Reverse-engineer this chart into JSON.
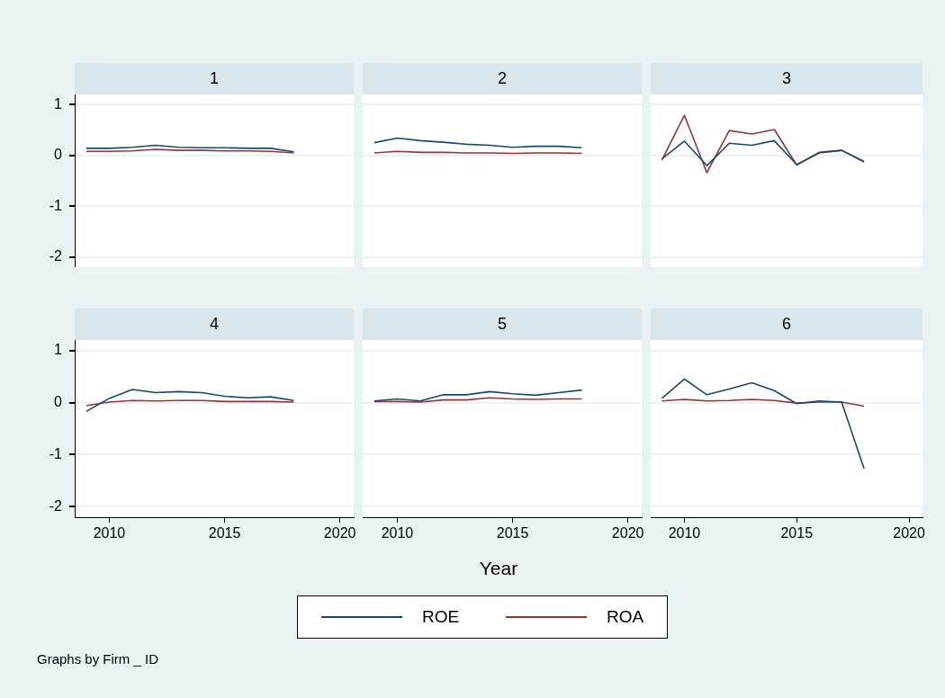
{
  "chart_data": [
    {
      "type": "line",
      "title": "1",
      "x": [
        2009,
        2010,
        2011,
        2012,
        2013,
        2014,
        2015,
        2016,
        2017,
        2018
      ],
      "xlim": [
        2008.5,
        2020.6
      ],
      "xticks": [
        2010,
        2015,
        2020
      ],
      "ylim": [
        -2.2,
        1.2
      ],
      "yticks": [
        -2,
        -1,
        0,
        1
      ],
      "grid": "y",
      "tick_labels": "y",
      "legend": "bottom",
      "series": [
        {
          "name": "ROE",
          "color": "#1a476f",
          "values": [
            0.14,
            0.14,
            0.16,
            0.2,
            0.16,
            0.15,
            0.15,
            0.14,
            0.14,
            0.07
          ]
        },
        {
          "name": "ROA",
          "color": "#90353b",
          "values": [
            0.08,
            0.08,
            0.09,
            0.12,
            0.1,
            0.1,
            0.09,
            0.09,
            0.08,
            0.05
          ]
        }
      ]
    },
    {
      "type": "line",
      "title": "2",
      "x": [
        2009,
        2010,
        2011,
        2012,
        2013,
        2014,
        2015,
        2016,
        2017,
        2018
      ],
      "xlim": [
        2008.5,
        2020.6
      ],
      "xticks": [
        2010,
        2015,
        2020
      ],
      "ylim": [
        -2.2,
        1.2
      ],
      "yticks": [
        -2,
        -1,
        0,
        1
      ],
      "grid": "y",
      "tick_labels": false,
      "legend": "bottom",
      "series": [
        {
          "name": "ROE",
          "color": "#1a476f",
          "values": [
            0.25,
            0.34,
            0.29,
            0.26,
            0.22,
            0.2,
            0.16,
            0.18,
            0.18,
            0.15
          ]
        },
        {
          "name": "ROA",
          "color": "#90353b",
          "values": [
            0.05,
            0.08,
            0.06,
            0.06,
            0.05,
            0.05,
            0.04,
            0.05,
            0.05,
            0.04
          ]
        }
      ]
    },
    {
      "type": "line",
      "title": "3",
      "x": [
        2009,
        2010,
        2011,
        2012,
        2013,
        2014,
        2015,
        2016,
        2017,
        2018
      ],
      "xlim": [
        2008.5,
        2020.6
      ],
      "xticks": [
        2010,
        2015,
        2020
      ],
      "ylim": [
        -2.2,
        1.2
      ],
      "yticks": [
        -2,
        -1,
        0,
        1
      ],
      "grid": "y",
      "tick_labels": false,
      "legend": "bottom",
      "series": [
        {
          "name": "ROE",
          "color": "#1a476f",
          "values": [
            -0.07,
            0.28,
            -0.2,
            0.24,
            0.2,
            0.29,
            -0.18,
            0.05,
            0.1,
            -0.12
          ]
        },
        {
          "name": "ROA",
          "color": "#90353b",
          "values": [
            -0.09,
            0.79,
            -0.34,
            0.49,
            0.42,
            0.51,
            -0.19,
            0.06,
            0.1,
            -0.13
          ]
        }
      ]
    },
    {
      "type": "line",
      "title": "4",
      "x": [
        2009,
        2010,
        2011,
        2012,
        2013,
        2014,
        2015,
        2016,
        2017,
        2018
      ],
      "xlim": [
        2008.5,
        2020.6
      ],
      "xticks": [
        2010,
        2015,
        2020
      ],
      "ylim": [
        -2.2,
        1.2
      ],
      "yticks": [
        -2,
        -1,
        0,
        1
      ],
      "grid": "y",
      "legend": "bottom",
      "annotations": [
        "Graphs by Firm _ ID"
      ],
      "series": [
        {
          "name": "ROE",
          "color": "#1a476f",
          "values": [
            -0.17,
            0.08,
            0.25,
            0.19,
            0.21,
            0.19,
            0.12,
            0.09,
            0.11,
            0.04
          ]
        },
        {
          "name": "ROA",
          "color": "#90353b",
          "values": [
            -0.06,
            0.01,
            0.04,
            0.03,
            0.04,
            0.04,
            0.02,
            0.02,
            0.02,
            0.01
          ]
        }
      ]
    },
    {
      "type": "line",
      "title": "5",
      "x": [
        2009,
        2010,
        2011,
        2012,
        2013,
        2014,
        2015,
        2016,
        2017,
        2018
      ],
      "xlim": [
        2008.5,
        2020.6
      ],
      "xticks": [
        2010,
        2015,
        2020
      ],
      "ylim": [
        -2.2,
        1.2
      ],
      "yticks": [
        -2,
        -1,
        0,
        1
      ],
      "grid": "y",
      "tick_labels": "x",
      "legend": "bottom",
      "xlabel": "Year",
      "series": [
        {
          "name": "ROE",
          "color": "#1a476f",
          "values": [
            0.03,
            0.07,
            0.03,
            0.15,
            0.15,
            0.21,
            0.17,
            0.14,
            0.19,
            0.24
          ]
        },
        {
          "name": "ROA",
          "color": "#90353b",
          "values": [
            0.02,
            0.02,
            0.01,
            0.05,
            0.05,
            0.09,
            0.07,
            0.06,
            0.07,
            0.07
          ]
        }
      ]
    },
    {
      "type": "line",
      "title": "6",
      "x": [
        2009,
        2010,
        2011,
        2012,
        2013,
        2014,
        2015,
        2016,
        2017,
        2018
      ],
      "xlim": [
        2008.5,
        2020.6
      ],
      "xticks": [
        2010,
        2015,
        2020
      ],
      "ylim": [
        -2.2,
        1.2
      ],
      "yticks": [
        -2,
        -1,
        0,
        1
      ],
      "grid": "y",
      "tick_labels": "x",
      "legend": "bottom",
      "series": [
        {
          "name": "ROE",
          "color": "#1a476f",
          "values": [
            0.08,
            0.45,
            0.15,
            0.26,
            0.38,
            0.23,
            -0.02,
            0.03,
            0.01,
            -1.27
          ]
        },
        {
          "name": "ROA",
          "color": "#90353b",
          "values": [
            0.03,
            0.06,
            0.03,
            0.04,
            0.06,
            0.04,
            -0.01,
            0.01,
            0.01,
            -0.07
          ]
        }
      ]
    }
  ]
}
